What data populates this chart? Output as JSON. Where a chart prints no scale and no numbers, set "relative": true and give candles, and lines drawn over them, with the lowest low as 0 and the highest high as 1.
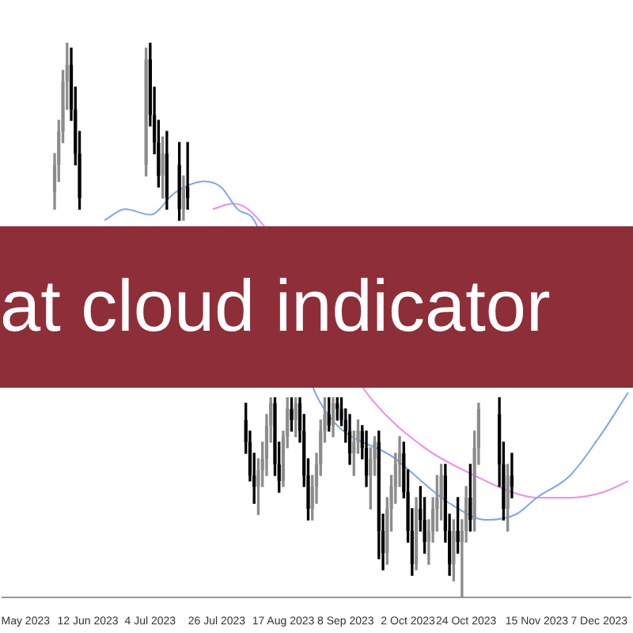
{
  "chart_data": {
    "type": "candlestick",
    "relative": true,
    "tick_labels": "x",
    "annotations": [
      "at cloud indicator"
    ],
    "categories": [
      null,
      null,
      null,
      null,
      null,
      "May 2023",
      null,
      null,
      null,
      null,
      null,
      null,
      null,
      null,
      null,
      null,
      null,
      null,
      null,
      null,
      "12 Jun 2023",
      null,
      null,
      null,
      null,
      null,
      null,
      null,
      null,
      null,
      null,
      null,
      null,
      null,
      null,
      "4 Jul 2023",
      null,
      null,
      null,
      null,
      null,
      null,
      null,
      null,
      null,
      null,
      null,
      null,
      null,
      null,
      null,
      "26 Jul 2023",
      null,
      null,
      null,
      null,
      null,
      null,
      null,
      null,
      null,
      null,
      null,
      null,
      null,
      null,
      null,
      "17 Aug 2023",
      null,
      null,
      null,
      null,
      null,
      null,
      null,
      null,
      null,
      null,
      null,
      null,
      null,
      null,
      "8 Sep 2023",
      null,
      null,
      null,
      null,
      null,
      null,
      null,
      null,
      null,
      null,
      null,
      null,
      null,
      null,
      "2 Oct 2023",
      null,
      null,
      null,
      null,
      null,
      null,
      null,
      null,
      null,
      null,
      null,
      null,
      null,
      "24 Oct 2023",
      null,
      null,
      null,
      null,
      null,
      null,
      null,
      null,
      null,
      null,
      null,
      null,
      null,
      null,
      null,
      null,
      "15 Nov 2023",
      null,
      null,
      null,
      null,
      null,
      null,
      null,
      null,
      null,
      null,
      null,
      null,
      null,
      null,
      "7 Dec 2023",
      null,
      null,
      null,
      null,
      null,
      null,
      null
    ],
    "ohlc": [
      null,
      null,
      null,
      null,
      null,
      null,
      null,
      null,
      null,
      null,
      null,
      null,
      [
        0.73,
        0.8,
        0.7,
        0.78
      ],
      [
        0.78,
        0.86,
        0.75,
        0.84
      ],
      [
        0.84,
        0.95,
        0.82,
        0.93
      ],
      [
        0.93,
        1.0,
        0.88,
        0.96
      ],
      [
        0.96,
        0.99,
        0.86,
        0.88
      ],
      [
        0.88,
        0.92,
        0.78,
        0.8
      ],
      [
        0.8,
        0.84,
        0.7,
        0.72
      ],
      null,
      null,
      null,
      null,
      null,
      null,
      null,
      null,
      null,
      null,
      null,
      null,
      null,
      null,
      null,
      [
        0.78,
        0.99,
        0.76,
        0.97
      ],
      [
        0.97,
        1.0,
        0.85,
        0.87
      ],
      [
        0.87,
        0.92,
        0.8,
        0.82
      ],
      [
        0.82,
        0.86,
        0.74,
        0.76
      ],
      [
        0.76,
        0.83,
        0.72,
        0.8
      ],
      [
        0.8,
        0.84,
        0.7,
        0.72
      ],
      null,
      null,
      [
        0.78,
        0.82,
        0.68,
        0.7
      ],
      [
        0.7,
        0.76,
        0.68,
        0.74
      ],
      [
        0.74,
        0.82,
        0.7,
        0.72
      ],
      null,
      null,
      null,
      null,
      null,
      null,
      null,
      null,
      null,
      null,
      null,
      null,
      null,
      [
        0.32,
        0.35,
        0.26,
        0.28
      ],
      [
        0.28,
        0.3,
        0.21,
        0.22
      ],
      [
        0.22,
        0.26,
        0.17,
        0.2
      ],
      [
        0.2,
        0.25,
        0.15,
        0.23
      ],
      [
        0.23,
        0.28,
        0.2,
        0.25
      ],
      [
        0.25,
        0.33,
        0.22,
        0.31
      ],
      [
        0.31,
        0.36,
        0.28,
        0.35
      ],
      [
        0.35,
        0.36,
        0.22,
        0.24
      ],
      [
        0.24,
        0.28,
        0.19,
        0.21
      ],
      [
        0.21,
        0.3,
        0.2,
        0.29
      ],
      [
        0.29,
        0.36,
        0.27,
        0.34
      ],
      [
        0.34,
        0.36,
        0.3,
        0.32
      ],
      [
        0.32,
        0.36,
        0.29,
        0.35
      ],
      [
        0.35,
        0.36,
        0.28,
        0.3
      ],
      [
        0.3,
        0.33,
        0.2,
        0.22
      ],
      [
        0.22,
        0.25,
        0.14,
        0.16
      ],
      [
        0.16,
        0.22,
        0.14,
        0.2
      ],
      [
        0.2,
        0.26,
        0.17,
        0.24
      ],
      [
        0.24,
        0.32,
        0.22,
        0.3
      ],
      [
        0.3,
        0.36,
        0.28,
        0.33
      ],
      [
        0.33,
        0.36,
        0.3,
        0.31
      ],
      [
        0.31,
        0.36,
        0.29,
        0.35
      ],
      [
        0.35,
        0.36,
        0.32,
        0.34
      ],
      [
        0.34,
        0.36,
        0.31,
        0.32
      ],
      [
        0.32,
        0.34,
        0.28,
        0.3
      ],
      [
        0.3,
        0.33,
        0.24,
        0.26
      ],
      [
        0.26,
        0.3,
        0.22,
        0.28
      ],
      [
        0.28,
        0.32,
        0.26,
        0.3
      ],
      [
        0.3,
        0.31,
        0.25,
        0.27
      ],
      [
        0.27,
        0.3,
        0.2,
        0.22
      ],
      [
        0.22,
        0.27,
        0.16,
        0.25
      ],
      [
        0.25,
        0.29,
        0.22,
        0.28
      ],
      [
        0.28,
        0.3,
        0.07,
        0.12
      ],
      [
        0.12,
        0.15,
        0.05,
        0.08
      ],
      [
        0.08,
        0.18,
        0.06,
        0.16
      ],
      [
        0.16,
        0.22,
        0.12,
        0.2
      ],
      [
        0.2,
        0.26,
        0.17,
        0.24
      ],
      [
        0.24,
        0.29,
        0.2,
        0.26
      ],
      [
        0.26,
        0.28,
        0.18,
        0.19
      ],
      [
        0.19,
        0.23,
        0.1,
        0.12
      ],
      [
        0.12,
        0.16,
        0.04,
        0.06
      ],
      [
        0.06,
        0.18,
        0.05,
        0.16
      ],
      [
        0.16,
        0.2,
        0.12,
        0.14
      ],
      [
        0.14,
        0.18,
        0.08,
        0.1
      ],
      [
        0.1,
        0.14,
        0.06,
        0.12
      ],
      [
        0.12,
        0.18,
        0.1,
        0.16
      ],
      [
        0.16,
        0.22,
        0.12,
        0.18
      ],
      [
        0.18,
        0.24,
        0.14,
        0.22
      ],
      [
        0.22,
        0.24,
        0.1,
        0.12
      ],
      [
        0.12,
        0.15,
        0.04,
        0.06
      ],
      [
        0.06,
        0.14,
        0.03,
        0.12
      ],
      [
        0.12,
        0.18,
        0.08,
        0.1
      ],
      [
        0.1,
        0.14,
        0.0,
        0.12
      ],
      [
        0.12,
        0.2,
        0.1,
        0.18
      ],
      [
        0.18,
        0.24,
        0.12,
        0.14
      ],
      [
        0.14,
        0.3,
        0.12,
        0.27
      ],
      [
        0.27,
        0.35,
        0.24,
        0.34
      ],
      null,
      null,
      null,
      null,
      [
        0.33,
        0.36,
        0.2,
        0.24
      ],
      [
        0.24,
        0.28,
        0.14,
        0.16
      ],
      [
        0.16,
        0.24,
        0.12,
        0.22
      ],
      [
        0.22,
        0.26,
        0.18,
        0.2
      ],
      null,
      null,
      null,
      null,
      null,
      null,
      null,
      null,
      null,
      null,
      null,
      null,
      null,
      null,
      null,
      null,
      null,
      null,
      null,
      null,
      null,
      null,
      null,
      null,
      null,
      null,
      null,
      null
    ],
    "colors": [
      null,
      null,
      null,
      null,
      null,
      null,
      null,
      null,
      null,
      null,
      null,
      null,
      "#8c8c8c",
      "#8c8c8c",
      "#8c8c8c",
      "#8c8c8c",
      "#000000",
      "#000000",
      "#000000",
      null,
      null,
      null,
      null,
      null,
      null,
      null,
      null,
      null,
      null,
      null,
      null,
      null,
      null,
      null,
      "#8c8c8c",
      "#000000",
      "#000000",
      "#000000",
      "#8c8c8c",
      "#000000",
      null,
      null,
      "#000000",
      "#8c8c8c",
      "#000000",
      null,
      null,
      null,
      null,
      null,
      null,
      null,
      null,
      null,
      null,
      null,
      null,
      null,
      "#000000",
      "#000000",
      "#000000",
      "#8c8c8c",
      "#8c8c8c",
      "#8c8c8c",
      "#8c8c8c",
      "#000000",
      "#000000",
      "#8c8c8c",
      "#8c8c8c",
      "#000000",
      "#8c8c8c",
      "#000000",
      "#000000",
      "#000000",
      "#8c8c8c",
      "#8c8c8c",
      "#8c8c8c",
      "#8c8c8c",
      "#000000",
      "#8c8c8c",
      "#000000",
      "#000000",
      "#000000",
      "#000000",
      "#8c8c8c",
      "#8c8c8c",
      "#000000",
      "#000000",
      "#8c8c8c",
      "#8c8c8c",
      "#000000",
      "#000000",
      "#8c8c8c",
      "#8c8c8c",
      "#8c8c8c",
      "#8c8c8c",
      "#000000",
      "#000000",
      "#000000",
      "#8c8c8c",
      "#000000",
      "#000000",
      "#8c8c8c",
      "#8c8c8c",
      "#8c8c8c",
      "#8c8c8c",
      "#000000",
      "#000000",
      "#8c8c8c",
      "#000000",
      "#8c8c8c",
      "#8c8c8c",
      "#000000",
      "#8c8c8c",
      "#8c8c8c",
      null,
      null,
      null,
      null,
      "#000000",
      "#000000",
      "#8c8c8c",
      "#000000",
      null,
      null,
      null,
      null,
      null,
      null,
      null,
      null,
      null,
      null,
      null,
      null,
      null,
      null,
      null,
      null,
      null,
      null,
      null,
      null,
      null,
      null,
      null,
      null,
      null,
      null,
      null,
      null
    ],
    "series": [
      {
        "type": "line",
        "color": "#7fa6f0",
        "values": [
          null,
          null,
          null,
          null,
          null,
          null,
          null,
          null,
          null,
          null,
          null,
          null,
          null,
          null,
          null,
          null,
          null,
          null,
          null,
          null,
          null,
          null,
          null,
          null,
          0.68,
          null,
          null,
          null,
          null,
          0.7,
          null,
          null,
          null,
          null,
          null,
          0.69,
          null,
          null,
          null,
          null,
          null,
          0.73,
          null,
          null,
          null,
          null,
          null,
          null,
          0.75,
          null,
          null,
          null,
          0.74,
          null,
          null,
          null,
          0.7,
          null,
          null,
          null,
          0.68,
          null,
          null,
          null,
          null,
          null,
          null,
          null,
          null,
          null,
          null,
          null,
          null,
          null,
          null,
          null,
          0.35,
          null,
          null,
          null,
          null,
          null,
          null,
          null,
          null,
          null,
          null,
          null,
          null,
          null,
          null,
          null,
          null,
          null,
          0.25,
          null,
          null,
          null,
          null,
          null,
          null,
          null,
          null,
          null,
          null,
          null,
          null,
          0.17,
          null,
          null,
          null,
          null,
          null,
          null,
          null,
          null,
          0.14,
          null,
          null,
          null,
          null,
          null,
          null,
          0.15,
          null,
          null,
          null,
          null,
          0.18,
          null,
          null,
          null,
          null,
          null,
          null,
          null,
          0.22,
          null,
          null,
          null,
          null,
          null,
          null,
          null,
          0.3,
          null,
          null,
          null,
          null,
          null,
          0.37
        ]
      },
      {
        "type": "line",
        "color": "#f08ce8",
        "values": [
          null,
          null,
          null,
          null,
          null,
          null,
          null,
          null,
          null,
          null,
          null,
          null,
          null,
          null,
          null,
          null,
          null,
          null,
          null,
          null,
          null,
          null,
          null,
          null,
          null,
          null,
          null,
          null,
          null,
          null,
          null,
          null,
          null,
          null,
          null,
          null,
          null,
          null,
          null,
          null,
          null,
          null,
          null,
          null,
          null,
          null,
          null,
          null,
          null,
          null,
          0.7,
          null,
          null,
          null,
          null,
          0.71,
          null,
          null,
          null,
          null,
          0.69,
          null,
          null,
          null,
          null,
          null,
          null,
          null,
          null,
          null,
          null,
          null,
          null,
          null,
          null,
          null,
          null,
          null,
          null,
          null,
          null,
          null,
          null,
          null,
          null,
          null,
          null,
          null,
          0.36,
          null,
          null,
          null,
          null,
          null,
          null,
          null,
          null,
          null,
          null,
          null,
          null,
          0.27,
          null,
          null,
          null,
          null,
          null,
          null,
          null,
          null,
          null,
          null,
          null,
          0.22,
          null,
          null,
          null,
          null,
          null,
          null,
          null,
          null,
          0.19,
          null,
          null,
          null,
          null,
          null,
          0.18,
          null,
          null,
          null,
          null,
          null,
          null,
          null,
          0.18,
          null,
          null,
          null,
          null,
          null,
          null,
          null,
          0.19,
          null,
          null,
          null,
          null,
          null,
          0.21
        ]
      }
    ]
  }
}
